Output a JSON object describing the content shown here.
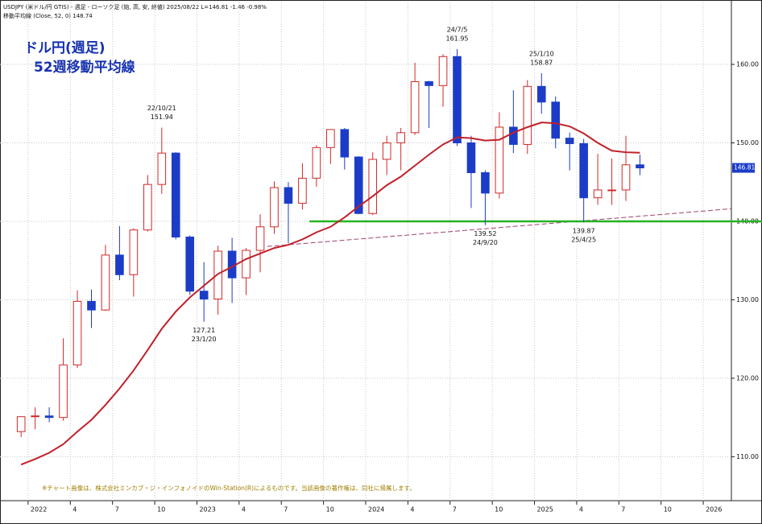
{
  "chart_data": {
    "type": "candlestick",
    "header": "USDJPY (米ドル/円 GTIS) - 週足 - ローソク足 (始, 高, 安, 終値)  2025/08/22 L=146.81 -1.46 -0.98%",
    "indicator_label": "移動平均線 (Close, 52, 0) 148.74",
    "title": "ドル円(週足)",
    "subtitle": "52週移動平均線",
    "footnote": "※チャート画像は、株式会社ミンカブ・ジ・インフォノイドのWin-Station(R)によるものです。当該画像の著作権は、同社に帰属します。",
    "x": [
      "2021-12",
      "2022-01",
      "2022-02",
      "2022-03",
      "2022-04",
      "2022-05",
      "2022-06",
      "2022-07",
      "2022-08",
      "2022-09",
      "2022-10",
      "2022-11",
      "2022-12",
      "2023-01",
      "2023-02",
      "2023-03",
      "2023-04",
      "2023-05",
      "2023-06",
      "2023-07",
      "2023-08",
      "2023-09",
      "2023-10",
      "2023-11",
      "2023-12",
      "2024-01",
      "2024-02",
      "2024-03",
      "2024-04",
      "2024-05",
      "2024-06",
      "2024-07",
      "2024-08",
      "2024-09",
      "2024-10",
      "2024-11",
      "2024-12",
      "2025-01",
      "2025-02",
      "2025-03",
      "2025-04",
      "2025-05",
      "2025-06",
      "2025-07",
      "2025-08"
    ],
    "open": [
      113.2,
      115.1,
      115.2,
      115.0,
      121.7,
      129.8,
      128.7,
      135.7,
      133.2,
      138.9,
      144.7,
      148.7,
      138.0,
      131.1,
      130.1,
      136.2,
      132.8,
      136.3,
      139.3,
      144.3,
      142.3,
      145.5,
      149.4,
      151.7,
      148.2,
      141.0,
      147.9,
      150.0,
      151.3,
      157.8,
      157.3,
      161.0,
      150.0,
      146.2,
      143.6,
      152.0,
      149.8,
      157.2,
      155.2,
      150.6,
      149.9,
      143.0,
      144.0,
      144.0,
      147.2
    ],
    "high": [
      115.1,
      116.3,
      116.3,
      125.1,
      131.2,
      131.3,
      137.0,
      139.4,
      139.1,
      145.9,
      151.94,
      148.8,
      138.2,
      134.8,
      136.9,
      137.9,
      136.6,
      140.9,
      145.1,
      145.0,
      147.4,
      149.7,
      151.7,
      151.9,
      148.3,
      148.8,
      150.9,
      151.9,
      160.2,
      157.9,
      161.3,
      161.95,
      150.9,
      146.5,
      153.9,
      156.7,
      158.0,
      158.87,
      155.9,
      151.3,
      150.5,
      148.6,
      148.0,
      150.9,
      148.5
    ],
    "low": [
      112.5,
      113.5,
      114.4,
      114.6,
      121.3,
      126.4,
      128.6,
      132.5,
      130.4,
      138.7,
      143.5,
      137.7,
      130.6,
      127.21,
      128.1,
      129.6,
      130.6,
      133.5,
      138.4,
      137.2,
      141.5,
      144.4,
      147.3,
      146.6,
      140.9,
      140.8,
      145.9,
      146.5,
      151.0,
      151.9,
      154.6,
      149.6,
      141.7,
      139.52,
      142.9,
      148.7,
      148.6,
      153.7,
      149.3,
      146.5,
      139.87,
      142.1,
      142.1,
      142.6,
      145.9
    ],
    "close": [
      115.1,
      115.2,
      115.0,
      121.7,
      129.8,
      128.7,
      135.7,
      133.2,
      138.9,
      144.7,
      148.7,
      138.0,
      131.1,
      130.1,
      136.2,
      132.8,
      136.3,
      139.3,
      144.3,
      142.3,
      145.5,
      149.4,
      151.7,
      148.2,
      141.0,
      147.9,
      150.0,
      151.3,
      157.8,
      157.3,
      161.0,
      150.0,
      146.2,
      143.6,
      152.0,
      149.8,
      157.2,
      155.2,
      150.6,
      149.9,
      143.0,
      144.0,
      144.0,
      147.2,
      146.81
    ],
    "up_color": "#d02828",
    "down_color": "#1c3cc8",
    "moving_average": {
      "color": "#c0202a",
      "values": [
        109.0,
        109.7,
        110.5,
        111.6,
        113.2,
        114.7,
        116.6,
        118.7,
        121.0,
        123.6,
        126.3,
        128.5,
        130.3,
        131.8,
        133.3,
        134.2,
        135.2,
        135.9,
        136.6,
        137.0,
        137.7,
        138.6,
        139.3,
        140.5,
        141.9,
        143.2,
        144.6,
        145.7,
        147.1,
        148.5,
        149.8,
        150.7,
        150.6,
        150.3,
        150.4,
        151.3,
        152.0,
        152.6,
        152.5,
        152.1,
        151.2,
        150.0,
        149.0,
        148.8,
        148.74
      ]
    },
    "support_line": {
      "x": "2023-09",
      "value": 140,
      "color": "#22b422"
    },
    "trendline": {
      "x": [
        "2023-06",
        "2026-03"
      ],
      "values": [
        136.8,
        141.6
      ],
      "color": "#a04070"
    },
    "last_price": 146.81,
    "annotations": [
      {
        "x": "2022-10",
        "date": "22/10/21",
        "value": 151.94,
        "position": "above"
      },
      {
        "x": "2023-01",
        "date": "23/1/20",
        "value": 127.21,
        "position": "below"
      },
      {
        "x": "2024-07",
        "date": "24/7/5",
        "value": 161.95,
        "position": "above"
      },
      {
        "x": "2024-09",
        "date": "24/9/20",
        "value": 139.52,
        "position": "below"
      },
      {
        "x": "2025-01",
        "date": "25/1/10",
        "value": 158.87,
        "position": "above"
      },
      {
        "x": "2025-04",
        "date": "25/4/25",
        "value": 139.87,
        "position": "below"
      }
    ],
    "xlim": [
      "2021-11",
      "2026-03"
    ],
    "xticks": [
      {
        "value": "2022-01",
        "label": "2022"
      },
      {
        "value": "2022-04",
        "label": "4"
      },
      {
        "value": "2022-07",
        "label": "7"
      },
      {
        "value": "2022-10",
        "label": "10"
      },
      {
        "value": "2023-01",
        "label": "2023"
      },
      {
        "value": "2023-04",
        "label": "4"
      },
      {
        "value": "2023-07",
        "label": "7"
      },
      {
        "value": "2023-10",
        "label": "10"
      },
      {
        "value": "2024-01",
        "label": "2024"
      },
      {
        "value": "2024-04",
        "label": "4"
      },
      {
        "value": "2024-07",
        "label": "7"
      },
      {
        "value": "2024-10",
        "label": "10"
      },
      {
        "value": "2025-01",
        "label": "2025"
      },
      {
        "value": "2025-04",
        "label": "4"
      },
      {
        "value": "2025-07",
        "label": "7"
      },
      {
        "value": "2025-10",
        "label": "10"
      },
      {
        "value": "2026-01",
        "label": "2026"
      }
    ],
    "ylim": [
      104.4,
      167.9
    ],
    "yticks": [
      {
        "value": 110,
        "label": "110.00"
      },
      {
        "value": 120,
        "label": "120.00"
      },
      {
        "value": 130,
        "label": "130.00"
      },
      {
        "value": 140,
        "label": "140.00"
      },
      {
        "value": 150,
        "label": "150.00"
      },
      {
        "value": 160,
        "label": "160.00"
      }
    ],
    "grid": true
  }
}
